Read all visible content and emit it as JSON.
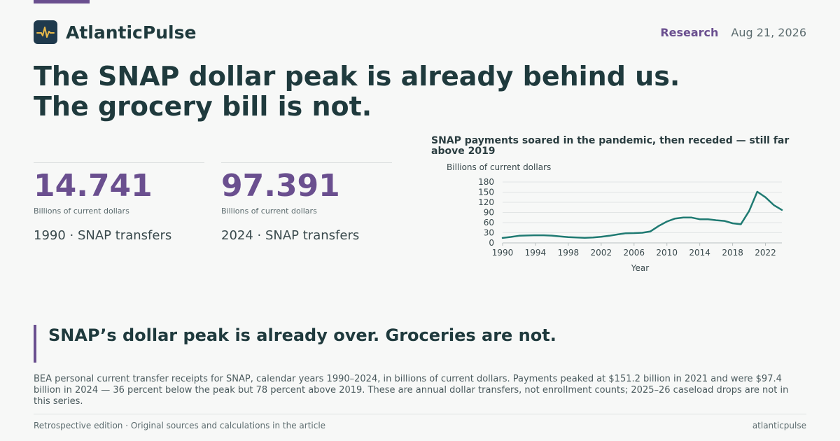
{
  "brand": {
    "name": "AtlanticPulse",
    "icon": "pulse-icon"
  },
  "header": {
    "section": "Research",
    "date": "Aug 21, 2026"
  },
  "headline": "The SNAP dollar peak is already behind us. The grocery bill is not.",
  "stats": [
    {
      "value": "14.741",
      "unit": "Billions of current dollars",
      "label": "1990 · SNAP transfers"
    },
    {
      "value": "97.391",
      "unit": "Billions of current dollars",
      "label": "2024 · SNAP transfers"
    }
  ],
  "colors": {
    "accent": "#6a4f8f",
    "line": "#1f7a72",
    "text": "#1f3a3d",
    "muted": "#5b6b6e",
    "grid": "#e2e5e5",
    "logo_bg": "#1f3a4d",
    "logo_stroke": "#e8b94a"
  },
  "chart_data": {
    "type": "line",
    "title": "SNAP payments soared in the pandemic, then receded — still far above 2019",
    "ylabel": "Billions of current dollars",
    "xlabel": "Year",
    "ylim": [
      0,
      180
    ],
    "xlim": [
      1990,
      2024
    ],
    "yticks": [
      "0",
      "30",
      "60",
      "90",
      "120",
      "150",
      "180"
    ],
    "xticks": [
      "1990",
      "1994",
      "1998",
      "2002",
      "2006",
      "2010",
      "2014",
      "2018",
      "2022"
    ],
    "grid": true,
    "series": [
      {
        "x": [
          1990,
          1991,
          1992,
          1993,
          1994,
          1995,
          1996,
          1997,
          1998,
          1999,
          2000,
          2001,
          2002,
          2003,
          2004,
          2005,
          2006,
          2007,
          2008,
          2009,
          2010,
          2011,
          2012,
          2013,
          2014,
          2015,
          2016,
          2017,
          2018,
          2019,
          2020,
          2021,
          2022,
          2023,
          2024
        ],
        "values": [
          14.741,
          17.5,
          21,
          22,
          22.5,
          22.5,
          21.5,
          19,
          17,
          16,
          15,
          16,
          18,
          21,
          25,
          28.5,
          29,
          30,
          34,
          50,
          63,
          72,
          75,
          75,
          70,
          70,
          67,
          65,
          58,
          55,
          94,
          151.2,
          135,
          112,
          97.391
        ]
      }
    ]
  },
  "pullquote": "SNAP’s dollar peak is already over. Groceries are not.",
  "body": "BEA personal current transfer receipts for SNAP, calendar years 1990–2024, in billions of current dollars. Payments peaked at $151.2 billion in 2021 and were $97.4 billion in 2024 — 36 percent below the peak but 78 percent above 2019. These are annual dollar transfers, not enrollment counts; 2025–26 caseload drops are not in this series.",
  "footer": {
    "left": "Retrospective edition · Original sources and calculations in the article",
    "right": "atlanticpulse"
  }
}
